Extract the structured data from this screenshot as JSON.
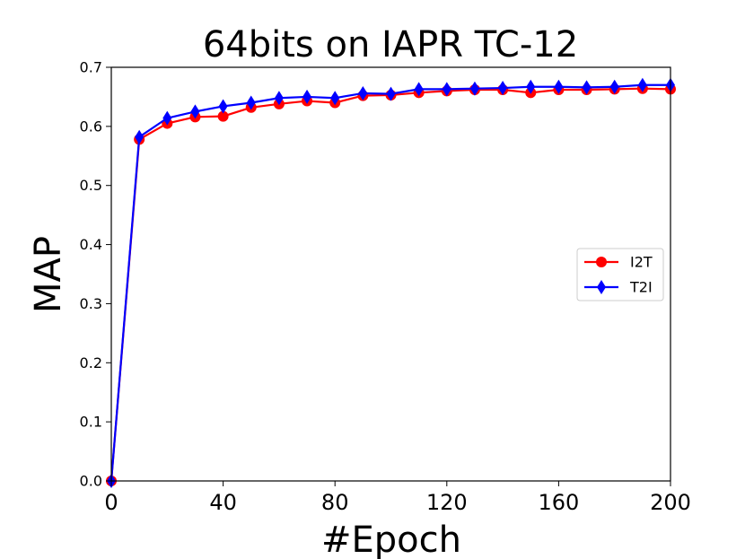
{
  "chart_data": {
    "type": "line",
    "title": "64bits on IAPR TC-12",
    "xlabel": "#Epoch",
    "ylabel": "MAP",
    "xlim": [
      0,
      200
    ],
    "ylim": [
      0.0,
      0.7
    ],
    "xticks": [
      "0",
      "40",
      "80",
      "120",
      "160",
      "200"
    ],
    "yticks": [
      "0.0",
      "0.1",
      "0.2",
      "0.3",
      "0.4",
      "0.5",
      "0.6",
      "0.7"
    ],
    "grid": false,
    "legend_position": "center-right",
    "x": [
      0,
      10,
      20,
      30,
      40,
      50,
      60,
      70,
      80,
      90,
      100,
      110,
      120,
      130,
      140,
      150,
      160,
      170,
      180,
      190,
      200
    ],
    "series": [
      {
        "name": "I2T",
        "color": "#ff0000",
        "marker": "circle",
        "values": [
          0.0,
          0.578,
          0.605,
          0.616,
          0.617,
          0.632,
          0.638,
          0.643,
          0.64,
          0.652,
          0.653,
          0.657,
          0.66,
          0.662,
          0.662,
          0.657,
          0.662,
          0.662,
          0.663,
          0.664,
          0.663
        ]
      },
      {
        "name": "T2I",
        "color": "#0000ff",
        "marker": "diamond",
        "values": [
          0.0,
          0.582,
          0.614,
          0.625,
          0.634,
          0.64,
          0.648,
          0.65,
          0.648,
          0.656,
          0.655,
          0.663,
          0.663,
          0.664,
          0.665,
          0.667,
          0.667,
          0.666,
          0.667,
          0.67,
          0.67
        ]
      }
    ]
  }
}
